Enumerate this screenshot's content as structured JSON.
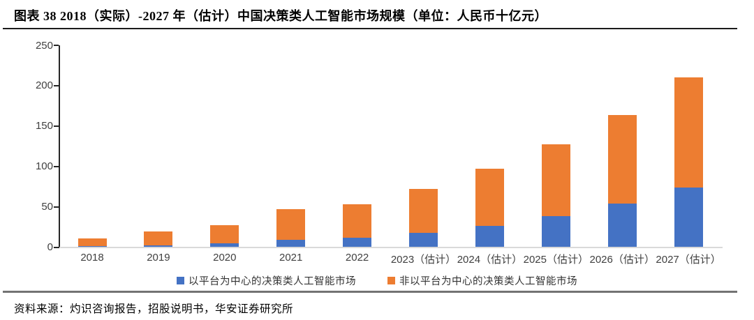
{
  "title": "图表 38 2018（实际）-2027 年（估计）中国决策类人工智能市场规模（单位：人民币十亿元）",
  "source": "资料来源：灼识咨询报告，招股说明书，华安证券研究所",
  "colors": {
    "platform_series": "#4472C4",
    "non_platform_series": "#ED7D31",
    "axis_text": "#404040",
    "baseline": "#D9D9D9"
  },
  "chart_data": {
    "type": "bar",
    "stacked": true,
    "title": "2018（实际）-2027 年（估计）中国决策类人工智能市场规模",
    "unit": "人民币十亿元",
    "categories": [
      "2018",
      "2019",
      "2020",
      "2021",
      "2022",
      "2023（估计）",
      "2024（估计）",
      "2025（估计）",
      "2026（估计）",
      "2027（估计）"
    ],
    "series": [
      {
        "name": "以平台为中心的决策类人工智能市场",
        "color": "#4472C4",
        "values": [
          1,
          2,
          5,
          9,
          12,
          18,
          26,
          38,
          54,
          74
        ]
      },
      {
        "name": "非以平台为中心的决策类人工智能市场",
        "color": "#ED7D31",
        "values": [
          10,
          17,
          22,
          38,
          41,
          54,
          71,
          89,
          110,
          136
        ]
      }
    ],
    "totals": [
      11,
      19,
      27,
      47,
      53,
      72,
      97,
      127,
      164,
      210
    ],
    "xlabel": "",
    "ylabel": "",
    "ylim": [
      0,
      250
    ],
    "yticks": [
      0,
      50,
      100,
      150,
      200,
      250
    ],
    "grid": false,
    "legend_position": "bottom"
  }
}
